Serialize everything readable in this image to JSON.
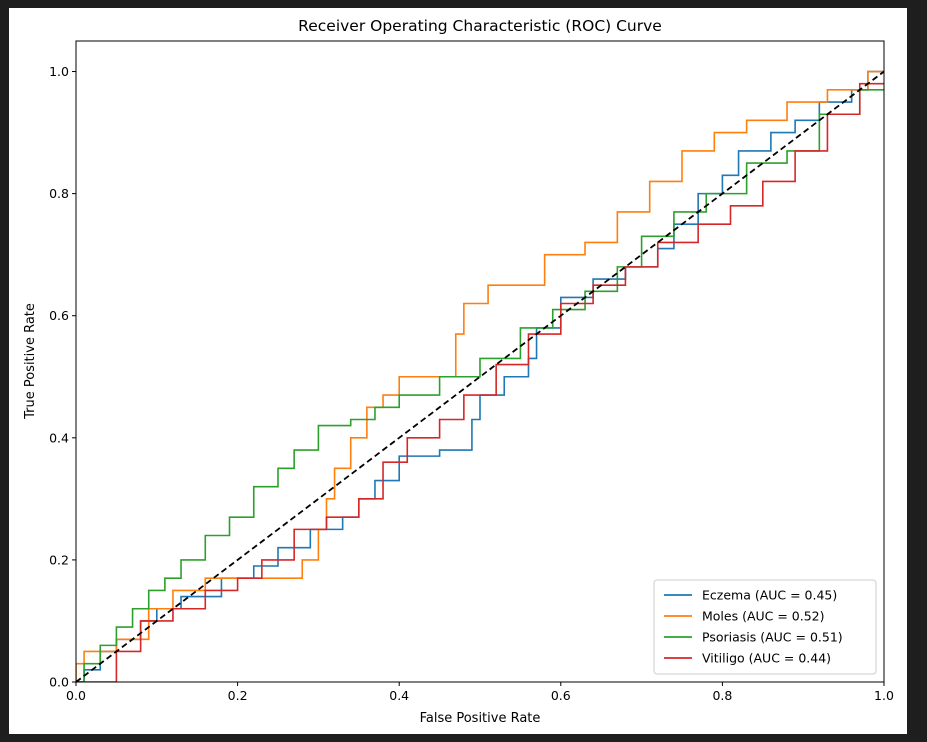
{
  "chart_data": {
    "type": "line",
    "title": "Receiver Operating Characteristic (ROC) Curve",
    "xlabel": "False Positive Rate",
    "ylabel": "True Positive Rate",
    "xlim": [
      0.0,
      1.0
    ],
    "ylim": [
      0.0,
      1.05
    ],
    "grid": false,
    "legend_position": "lower right",
    "xticks": [
      0.0,
      0.2,
      0.4,
      0.6,
      0.8,
      1.0
    ],
    "xtick_labels": [
      "0.0",
      "0.2",
      "0.4",
      "0.6",
      "0.8",
      "1.0"
    ],
    "yticks": [
      0.0,
      0.2,
      0.4,
      0.6,
      0.8,
      1.0
    ],
    "ytick_labels": [
      "0.0",
      "0.2",
      "0.4",
      "0.6",
      "0.8",
      "1.0"
    ],
    "diagonal": {
      "x": [
        0,
        1
      ],
      "y": [
        0,
        1
      ],
      "style": "dashed",
      "color": "#000000"
    },
    "series": [
      {
        "name": "Eczema (AUC = 0.45)",
        "color": "#1f77b4",
        "x": [
          0,
          0.01,
          0.01,
          0.03,
          0.03,
          0.05,
          0.05,
          0.08,
          0.08,
          0.1,
          0.1,
          0.13,
          0.13,
          0.18,
          0.18,
          0.22,
          0.22,
          0.25,
          0.25,
          0.29,
          0.29,
          0.33,
          0.33,
          0.35,
          0.35,
          0.37,
          0.37,
          0.4,
          0.4,
          0.42,
          0.42,
          0.45,
          0.45,
          0.49,
          0.49,
          0.5,
          0.5,
          0.53,
          0.53,
          0.56,
          0.56,
          0.57,
          0.57,
          0.6,
          0.6,
          0.64,
          0.64,
          0.68,
          0.68,
          0.72,
          0.72,
          0.74,
          0.74,
          0.77,
          0.77,
          0.8,
          0.8,
          0.82,
          0.82,
          0.86,
          0.86,
          0.89,
          0.89,
          0.92,
          0.92,
          0.96,
          0.96,
          0.98,
          0.98,
          1.0
        ],
        "y": [
          0,
          0,
          0.02,
          0.02,
          0.05,
          0.05,
          0.07,
          0.07,
          0.1,
          0.1,
          0.12,
          0.12,
          0.14,
          0.14,
          0.17,
          0.17,
          0.19,
          0.19,
          0.22,
          0.22,
          0.25,
          0.25,
          0.27,
          0.27,
          0.3,
          0.3,
          0.33,
          0.33,
          0.37,
          0.37,
          0.37,
          0.37,
          0.38,
          0.38,
          0.43,
          0.43,
          0.47,
          0.47,
          0.5,
          0.5,
          0.53,
          0.53,
          0.58,
          0.58,
          0.63,
          0.63,
          0.66,
          0.66,
          0.68,
          0.68,
          0.71,
          0.71,
          0.75,
          0.75,
          0.8,
          0.8,
          0.83,
          0.83,
          0.87,
          0.87,
          0.9,
          0.9,
          0.92,
          0.92,
          0.95,
          0.95,
          0.97,
          0.97,
          1.0,
          1.0
        ]
      },
      {
        "name": "Moles (AUC = 0.52)",
        "color": "#ff7f0e",
        "x": [
          0,
          0.0,
          0.01,
          0.01,
          0.05,
          0.05,
          0.09,
          0.09,
          0.12,
          0.12,
          0.16,
          0.16,
          0.2,
          0.2,
          0.28,
          0.28,
          0.3,
          0.3,
          0.31,
          0.31,
          0.32,
          0.32,
          0.34,
          0.34,
          0.36,
          0.36,
          0.38,
          0.38,
          0.4,
          0.4,
          0.47,
          0.47,
          0.48,
          0.48,
          0.51,
          0.51,
          0.58,
          0.58,
          0.63,
          0.63,
          0.67,
          0.67,
          0.71,
          0.71,
          0.75,
          0.75,
          0.79,
          0.79,
          0.83,
          0.83,
          0.88,
          0.88,
          0.93,
          0.93,
          0.98,
          0.98,
          1.0
        ],
        "y": [
          0,
          0.03,
          0.03,
          0.05,
          0.05,
          0.07,
          0.07,
          0.12,
          0.12,
          0.15,
          0.15,
          0.17,
          0.17,
          0.17,
          0.17,
          0.2,
          0.2,
          0.25,
          0.25,
          0.3,
          0.3,
          0.35,
          0.35,
          0.4,
          0.4,
          0.45,
          0.45,
          0.47,
          0.47,
          0.5,
          0.5,
          0.57,
          0.57,
          0.62,
          0.62,
          0.65,
          0.65,
          0.7,
          0.7,
          0.72,
          0.72,
          0.77,
          0.77,
          0.82,
          0.82,
          0.87,
          0.87,
          0.9,
          0.9,
          0.92,
          0.92,
          0.95,
          0.95,
          0.97,
          0.97,
          1.0,
          1.0
        ]
      },
      {
        "name": "Psoriasis (AUC = 0.51)",
        "color": "#2ca02c",
        "x": [
          0,
          0.01,
          0.01,
          0.03,
          0.03,
          0.05,
          0.05,
          0.07,
          0.07,
          0.09,
          0.09,
          0.11,
          0.11,
          0.13,
          0.13,
          0.16,
          0.16,
          0.19,
          0.19,
          0.22,
          0.22,
          0.25,
          0.25,
          0.27,
          0.27,
          0.3,
          0.3,
          0.34,
          0.34,
          0.37,
          0.37,
          0.4,
          0.4,
          0.45,
          0.45,
          0.5,
          0.5,
          0.55,
          0.55,
          0.59,
          0.59,
          0.63,
          0.63,
          0.67,
          0.67,
          0.7,
          0.7,
          0.74,
          0.74,
          0.78,
          0.78,
          0.83,
          0.83,
          0.88,
          0.88,
          0.92,
          0.92,
          0.97,
          0.97,
          1.0
        ],
        "y": [
          0,
          0,
          0.03,
          0.03,
          0.06,
          0.06,
          0.09,
          0.09,
          0.12,
          0.12,
          0.15,
          0.15,
          0.17,
          0.17,
          0.2,
          0.2,
          0.24,
          0.24,
          0.27,
          0.27,
          0.32,
          0.32,
          0.35,
          0.35,
          0.38,
          0.38,
          0.42,
          0.42,
          0.43,
          0.43,
          0.45,
          0.45,
          0.47,
          0.47,
          0.5,
          0.5,
          0.53,
          0.53,
          0.58,
          0.58,
          0.61,
          0.61,
          0.64,
          0.64,
          0.68,
          0.68,
          0.73,
          0.73,
          0.77,
          0.77,
          0.8,
          0.8,
          0.85,
          0.85,
          0.87,
          0.87,
          0.93,
          0.93,
          0.97,
          0.97
        ]
      },
      {
        "name": "Vitiligo (AUC = 0.44)",
        "color": "#d62728",
        "x": [
          0,
          0.05,
          0.05,
          0.08,
          0.08,
          0.12,
          0.12,
          0.16,
          0.16,
          0.2,
          0.2,
          0.23,
          0.23,
          0.27,
          0.27,
          0.31,
          0.31,
          0.35,
          0.35,
          0.38,
          0.38,
          0.41,
          0.41,
          0.45,
          0.45,
          0.48,
          0.48,
          0.52,
          0.52,
          0.56,
          0.56,
          0.6,
          0.6,
          0.64,
          0.64,
          0.68,
          0.68,
          0.72,
          0.72,
          0.77,
          0.77,
          0.81,
          0.81,
          0.85,
          0.85,
          0.89,
          0.89,
          0.93,
          0.93,
          0.97,
          0.97,
          1.0
        ],
        "y": [
          0,
          0,
          0.05,
          0.05,
          0.1,
          0.1,
          0.12,
          0.12,
          0.15,
          0.15,
          0.17,
          0.17,
          0.2,
          0.2,
          0.25,
          0.25,
          0.27,
          0.27,
          0.3,
          0.3,
          0.36,
          0.36,
          0.4,
          0.4,
          0.43,
          0.43,
          0.47,
          0.47,
          0.52,
          0.52,
          0.57,
          0.57,
          0.62,
          0.62,
          0.65,
          0.65,
          0.68,
          0.68,
          0.72,
          0.72,
          0.75,
          0.75,
          0.78,
          0.78,
          0.82,
          0.82,
          0.87,
          0.87,
          0.93,
          0.93,
          0.98,
          0.98
        ]
      }
    ]
  }
}
